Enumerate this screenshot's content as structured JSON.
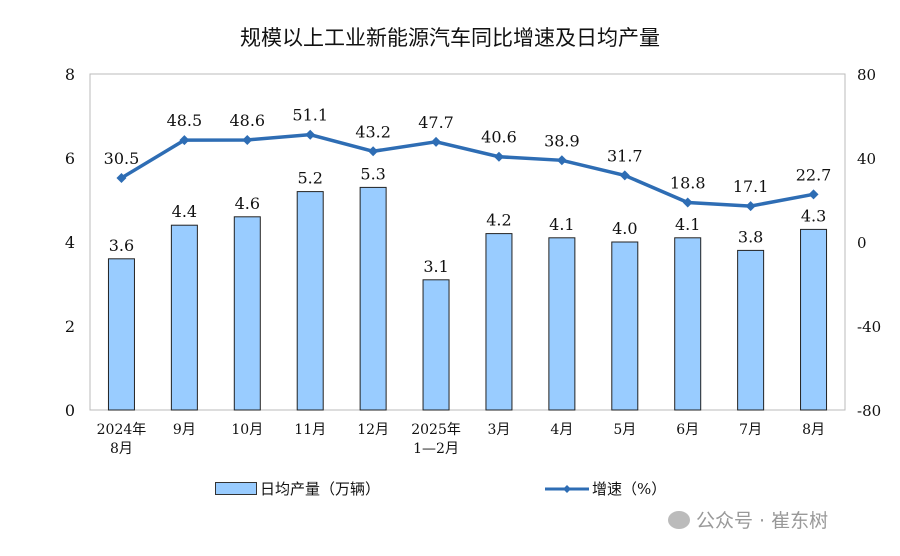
{
  "chart_data": {
    "type": "bar+line",
    "title": "规模以上工业新能源汽车同比增速及日均产量",
    "categories": [
      "2024年\n8月",
      "9月",
      "10月",
      "11月",
      "12月",
      "2025年\n1—2月",
      "3月",
      "4月",
      "5月",
      "6月",
      "7月",
      "8月"
    ],
    "series": [
      {
        "name": "日均产量（万辆）",
        "type": "bar",
        "axis": "left",
        "color": "#99CCFF",
        "values": [
          3.6,
          4.4,
          4.6,
          5.2,
          5.3,
          3.1,
          4.2,
          4.1,
          4.0,
          4.1,
          3.8,
          4.3
        ]
      },
      {
        "name": "增速（%）",
        "type": "line",
        "axis": "right",
        "color": "#2E6DB4",
        "values": [
          30.5,
          48.5,
          48.6,
          51.1,
          43.2,
          47.7,
          40.6,
          38.9,
          31.7,
          18.8,
          17.1,
          22.7
        ]
      }
    ],
    "left_axis": {
      "ylim": [
        0,
        8
      ],
      "ticks": [
        "0",
        "2",
        "4",
        "6",
        "8"
      ]
    },
    "right_axis": {
      "ylim": [
        -80,
        80
      ],
      "ticks": [
        "-80",
        "-40",
        "0",
        "40",
        "80"
      ]
    },
    "legend": "bottom",
    "grid": false
  },
  "watermark": "公众号 · 崔东树"
}
